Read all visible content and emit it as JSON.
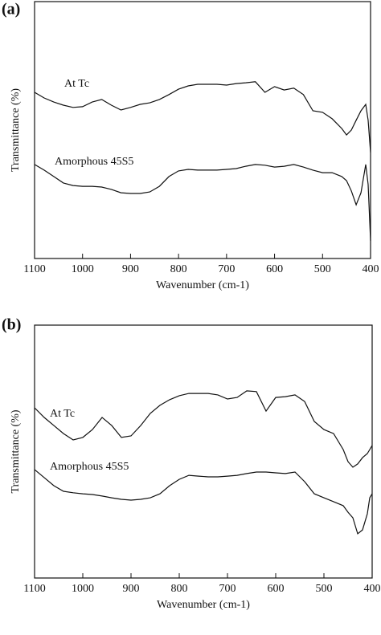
{
  "chart_data": [
    {
      "type": "line",
      "panel_label": "(a)",
      "xlabel": "Wavenumber (cm-1)",
      "ylabel": "Transmittance (%)",
      "x": [
        1100,
        1080,
        1060,
        1040,
        1020,
        1000,
        980,
        960,
        940,
        920,
        900,
        880,
        860,
        840,
        820,
        800,
        780,
        760,
        740,
        720,
        700,
        680,
        660,
        640,
        620,
        600,
        580,
        560,
        540,
        520,
        500,
        480,
        460,
        450,
        440,
        430,
        420,
        410,
        405,
        400
      ],
      "xlim": [
        1100,
        400
      ],
      "xticks": [
        1100,
        1000,
        900,
        800,
        700,
        600,
        500,
        400
      ],
      "ylim": [
        0,
        100
      ],
      "series": [
        {
          "name": "At Tc",
          "color": "#111111",
          "values": [
            64.7,
            62.5,
            60.9,
            59.7,
            58.8,
            59.1,
            60.9,
            61.9,
            59.7,
            57.8,
            58.8,
            60.0,
            60.6,
            61.9,
            63.8,
            65.9,
            67.2,
            67.8,
            67.8,
            67.8,
            67.5,
            68.1,
            68.4,
            68.8,
            64.7,
            66.9,
            65.6,
            66.3,
            63.8,
            57.5,
            56.9,
            54.4,
            50.6,
            48.1,
            50.0,
            53.8,
            57.5,
            60.0,
            53.8,
            41.3
          ]
        },
        {
          "name": "Amorphous 45S5",
          "color": "#111111",
          "values": [
            36.6,
            34.4,
            31.9,
            29.4,
            28.4,
            28.1,
            28.1,
            27.8,
            26.9,
            25.6,
            25.3,
            25.3,
            25.9,
            28.1,
            31.9,
            34.1,
            34.7,
            34.4,
            34.4,
            34.4,
            34.7,
            35.0,
            35.9,
            36.6,
            36.3,
            35.6,
            35.9,
            36.6,
            35.6,
            34.4,
            33.4,
            33.4,
            31.9,
            30.3,
            26.3,
            20.9,
            25.6,
            36.6,
            28.8,
            6.9
          ]
        }
      ]
    },
    {
      "type": "line",
      "panel_label": "(b)",
      "xlabel": "Wavenumber (cm-1)",
      "ylabel": "Transmittance (%)",
      "x": [
        1100,
        1080,
        1060,
        1040,
        1020,
        1000,
        980,
        960,
        940,
        920,
        900,
        880,
        860,
        840,
        820,
        800,
        780,
        760,
        740,
        720,
        700,
        680,
        660,
        640,
        620,
        600,
        580,
        560,
        540,
        520,
        500,
        480,
        460,
        450,
        440,
        430,
        420,
        410,
        405,
        400
      ],
      "xlim": [
        1100,
        400
      ],
      "xticks": [
        1100,
        1000,
        900,
        800,
        700,
        600,
        500,
        400
      ],
      "ylim": [
        0,
        100
      ],
      "series": [
        {
          "name": "At Tc",
          "color": "#111111",
          "values": [
            67.3,
            63.5,
            60.3,
            57.1,
            54.6,
            55.6,
            58.7,
            63.5,
            60.3,
            55.6,
            56.2,
            60.3,
            65.1,
            68.3,
            70.5,
            72.1,
            73.0,
            73.0,
            73.0,
            72.4,
            70.8,
            71.4,
            74.0,
            73.7,
            66.0,
            71.4,
            71.7,
            72.4,
            69.8,
            61.9,
            58.7,
            57.1,
            50.8,
            46.0,
            43.8,
            45.1,
            47.6,
            49.2,
            50.8,
            52.4
          ]
        },
        {
          "name": "Amorphous 45S5",
          "color": "#111111",
          "values": [
            42.9,
            39.7,
            36.5,
            34.3,
            33.7,
            33.3,
            33.0,
            32.4,
            31.7,
            31.1,
            30.8,
            31.1,
            31.7,
            33.3,
            36.5,
            39.0,
            40.6,
            40.3,
            40.0,
            40.0,
            40.3,
            40.6,
            41.3,
            41.9,
            41.9,
            41.6,
            41.3,
            41.9,
            38.1,
            33.3,
            31.7,
            30.2,
            28.6,
            26.0,
            23.8,
            17.5,
            19.0,
            25.4,
            31.7,
            33.3
          ]
        }
      ]
    }
  ]
}
